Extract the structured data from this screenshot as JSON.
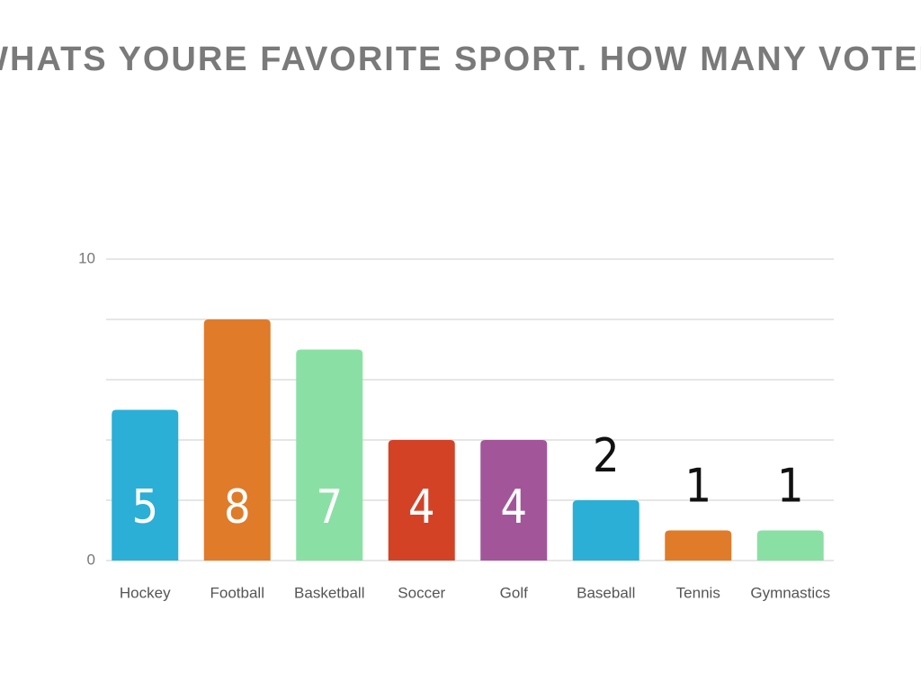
{
  "chart_data": {
    "type": "bar",
    "title": "WHATS YOURE FAVORITE SPORT. HOW MANY VOTED",
    "categories": [
      "Hockey",
      "Football",
      "Basketball",
      "Soccer",
      "Golf",
      "Baseball",
      "Tennis",
      "Gymnastics"
    ],
    "values": [
      5,
      8,
      7,
      4,
      4,
      2,
      1,
      1
    ],
    "colors": [
      "#2bafd6",
      "#e07b2a",
      "#8ae0a4",
      "#d44226",
      "#a3559a",
      "#2bafd6",
      "#e07b2a",
      "#8ae0a4"
    ],
    "ylim": [
      0,
      10
    ],
    "yticks": [
      0,
      {
        "value": 2,
        "label": null
      },
      {
        "value": 4,
        "label": null
      },
      {
        "value": 6,
        "label": null
      },
      {
        "value": 8,
        "label": null
      },
      10
    ],
    "grid": true
  }
}
